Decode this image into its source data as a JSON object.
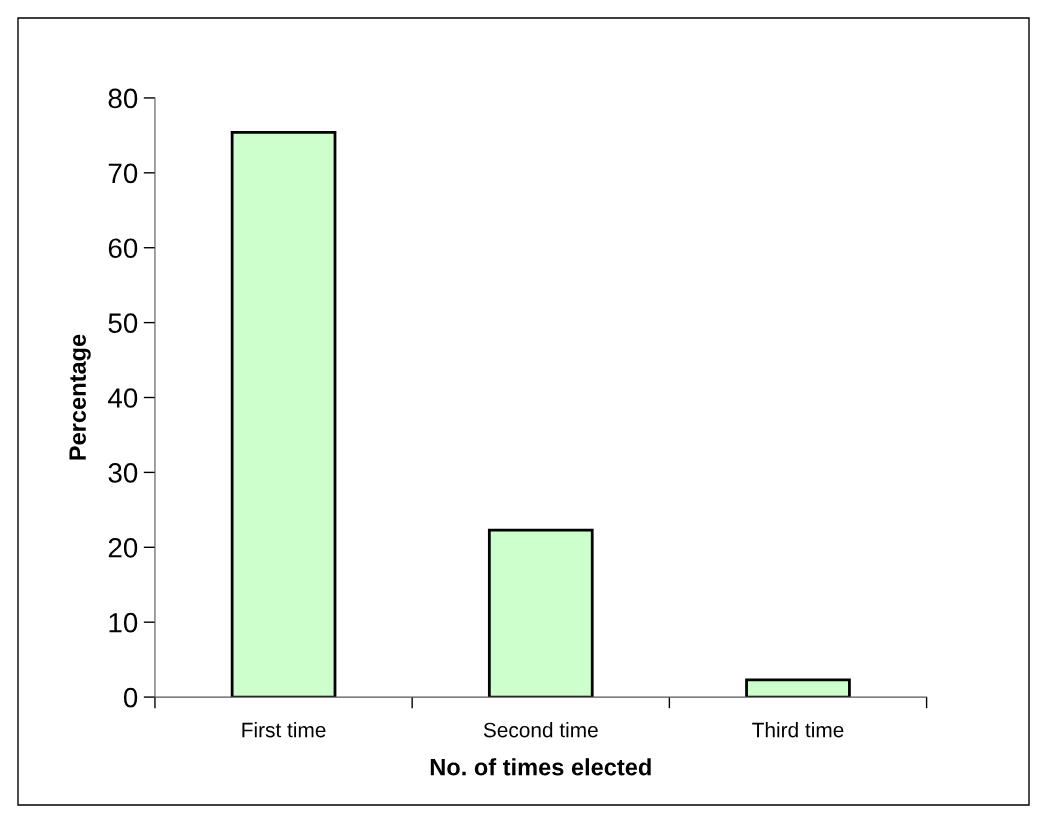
{
  "chart_data": {
    "type": "bar",
    "xlabel": "No. of times elected",
    "ylabel": "Percentage",
    "categories": [
      "First time",
      "Second time",
      "Third time"
    ],
    "values": [
      75.4,
      22.3,
      2.3
    ],
    "color": "#ccffcc",
    "ylim": [
      0,
      80
    ],
    "yticks": [
      0,
      10,
      20,
      30,
      40,
      50,
      60,
      70,
      80
    ],
    "grid": false,
    "legend": false
  }
}
